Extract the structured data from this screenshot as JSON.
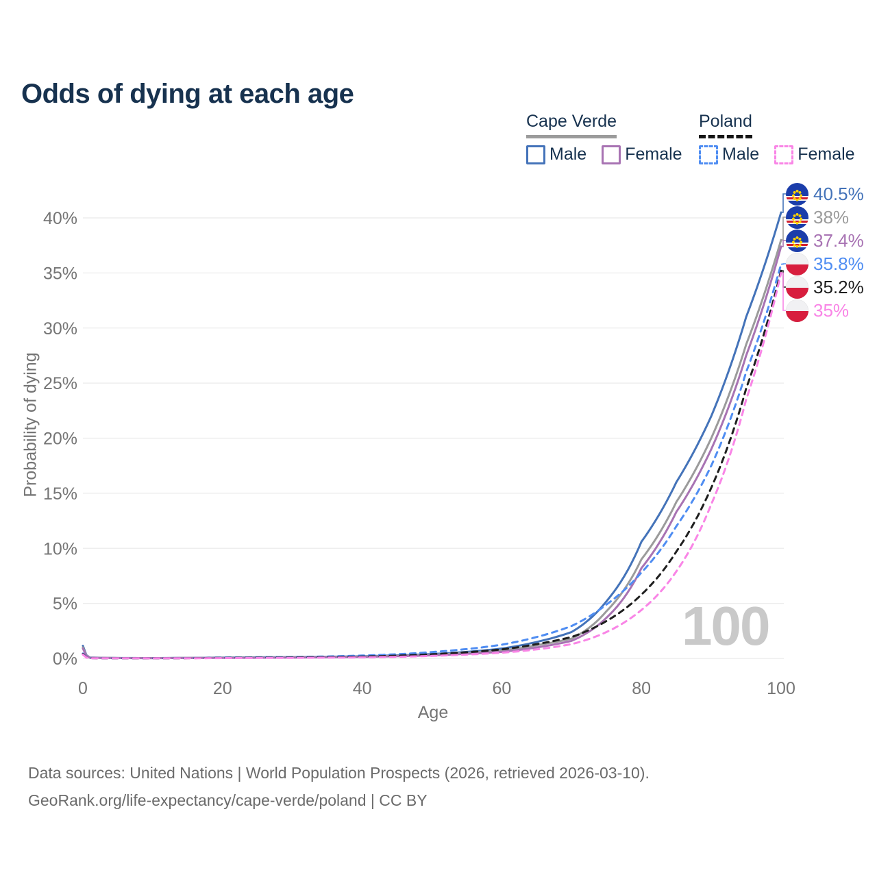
{
  "title": "Odds of dying at each age",
  "age_indicator": "100",
  "legend": {
    "groups": [
      {
        "name": "Cape Verde",
        "line_style": "solid",
        "underline_color": "#9b9b9b",
        "items": [
          {
            "label": "Male",
            "color": "#4473b9",
            "dashed": false
          },
          {
            "label": "Female",
            "color": "#a873b3",
            "dashed": false
          }
        ]
      },
      {
        "name": "Poland",
        "line_style": "dashed",
        "underline_color": "#161616",
        "items": [
          {
            "label": "Male",
            "color": "#4f8df2",
            "dashed": true
          },
          {
            "label": "Female",
            "color": "#f985e6",
            "dashed": true
          }
        ]
      }
    ]
  },
  "footer": {
    "line1": "Data sources: United Nations | World Population Prospects (2026, retrieved 2026-03-10).",
    "line2": "GeoRank.org/life-expectancy/cape-verde/poland | CC BY"
  },
  "chart_data": {
    "type": "line",
    "title": "Odds of dying at each age",
    "xlabel": "Age",
    "ylabel": "Probability of dying",
    "xlim": [
      0,
      100
    ],
    "ylim_percent": [
      0,
      42
    ],
    "x_ticks": [
      0,
      20,
      40,
      60,
      80,
      100
    ],
    "y_ticks": [
      "0%",
      "5%",
      "10%",
      "15%",
      "20%",
      "25%",
      "30%",
      "35%",
      "40%"
    ],
    "grid": true,
    "legend_position": "top-right",
    "x": [
      0,
      1,
      5,
      10,
      15,
      20,
      25,
      30,
      35,
      40,
      45,
      50,
      55,
      60,
      65,
      70,
      75,
      80,
      85,
      90,
      95,
      100
    ],
    "series": [
      {
        "name": "Cape Verde — Male",
        "country": "Cape Verde",
        "sex": "Male",
        "color": "#4473b9",
        "dashed": false,
        "flag": "cape-verde",
        "end_label": "40.5%",
        "end_value": 40.5,
        "values": [
          1.15,
          0.08,
          0.04,
          0.03,
          0.05,
          0.08,
          0.1,
          0.12,
          0.15,
          0.2,
          0.28,
          0.4,
          0.6,
          0.9,
          1.5,
          2.4,
          5.2,
          10.6,
          16.0,
          22.0,
          31.0,
          40.5
        ]
      },
      {
        "name": "Cape Verde — Both sexes",
        "country": "Cape Verde",
        "sex": "Both",
        "color": "#9b9b9b",
        "dashed": false,
        "flag": "cape-verde",
        "end_label": "38%",
        "end_value": 38,
        "values": [
          1.0,
          0.07,
          0.035,
          0.027,
          0.045,
          0.065,
          0.08,
          0.1,
          0.13,
          0.17,
          0.24,
          0.34,
          0.5,
          0.72,
          1.2,
          1.8,
          4.3,
          9.0,
          14.2,
          20.0,
          28.5,
          38.0
        ]
      },
      {
        "name": "Cape Verde — Female",
        "country": "Cape Verde",
        "sex": "Female",
        "color": "#a873b3",
        "dashed": false,
        "flag": "cape-verde",
        "end_label": "37.4%",
        "end_value": 37.4,
        "values": [
          0.9,
          0.06,
          0.03,
          0.024,
          0.04,
          0.05,
          0.06,
          0.08,
          0.11,
          0.14,
          0.2,
          0.28,
          0.42,
          0.6,
          1.0,
          1.6,
          3.7,
          8.2,
          13.3,
          19.0,
          27.5,
          37.4
        ]
      },
      {
        "name": "Poland — Male",
        "country": "Poland",
        "sex": "Male",
        "color": "#4f8df2",
        "dashed": true,
        "flag": "poland",
        "end_label": "35.8%",
        "end_value": 35.8,
        "values": [
          0.45,
          0.03,
          0.015,
          0.012,
          0.03,
          0.07,
          0.1,
          0.13,
          0.18,
          0.26,
          0.38,
          0.58,
          0.85,
          1.25,
          1.95,
          2.95,
          4.9,
          7.8,
          12.0,
          17.5,
          26.0,
          35.8
        ]
      },
      {
        "name": "Poland — Both sexes",
        "country": "Poland",
        "sex": "Both",
        "color": "#1f1f1f",
        "dashed": true,
        "flag": "poland",
        "end_label": "35.2%",
        "end_value": 35.2,
        "values": [
          0.4,
          0.025,
          0.013,
          0.01,
          0.022,
          0.05,
          0.07,
          0.09,
          0.12,
          0.17,
          0.25,
          0.38,
          0.56,
          0.82,
          1.3,
          1.95,
          3.4,
          5.8,
          9.7,
          15.5,
          24.5,
          35.2
        ]
      },
      {
        "name": "Poland — Female",
        "country": "Poland",
        "sex": "Female",
        "color": "#f985e6",
        "dashed": true,
        "flag": "poland",
        "end_label": "35%",
        "end_value": 35.0,
        "values": [
          0.35,
          0.02,
          0.012,
          0.009,
          0.015,
          0.03,
          0.04,
          0.05,
          0.07,
          0.1,
          0.15,
          0.23,
          0.35,
          0.52,
          0.82,
          1.3,
          2.4,
          4.4,
          7.9,
          14.0,
          23.5,
          35.0
        ]
      }
    ]
  }
}
